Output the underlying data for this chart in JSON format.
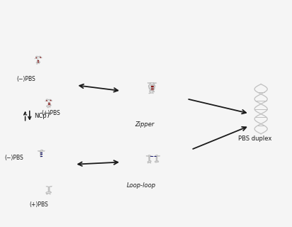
{
  "bg_color": "#f5f5f5",
  "fig_width": 4.12,
  "fig_height": 3.2,
  "dpi": 100,
  "structure_color": "#c0c0c0",
  "structure_lw": 0.9,
  "red_color": "#8b1a1a",
  "blue_color": "#1a1a6e",
  "arrow_color": "#1a1a1a",
  "label_fontsize": 5.5,
  "label_color": "#1a1a1a",
  "labels": {
    "minus_pbs_upper": "(−)PBS",
    "plus_pbs_upper": "(+)PBS",
    "zipper": "Zipper",
    "loop_loop": "Loop-loop",
    "pbs_duplex": "PBS duplex",
    "ncp7": "NCp7",
    "minus_pbs_lower": "(−)PBS",
    "plus_pbs_lower": "(+)PBS"
  }
}
